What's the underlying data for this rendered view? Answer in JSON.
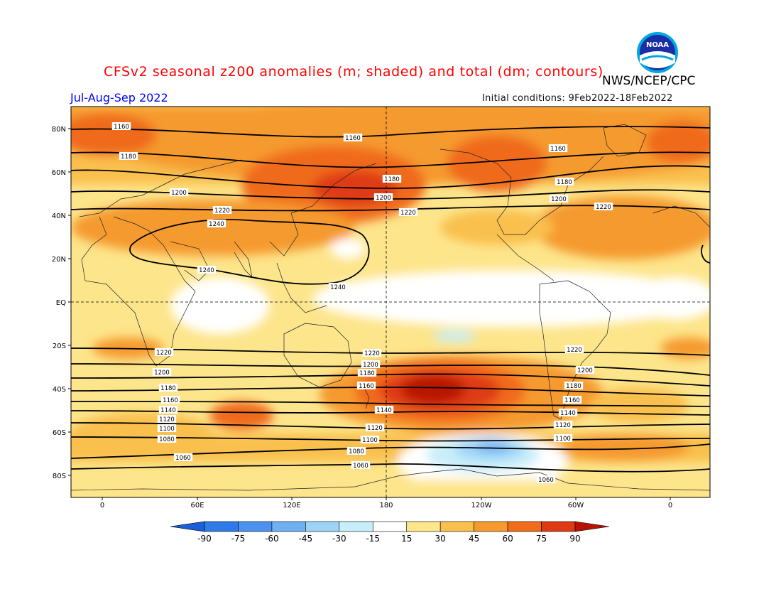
{
  "header": {
    "title": "CFSv2 seasonal z200 anomalies (m; shaded) and total (dm; contours)",
    "title_color": "#ff0000",
    "agency": "NWS/NCEP/CPC",
    "period": "Jul-Aug-Sep 2022",
    "period_color": "#0000ff",
    "initial_conditions": "Initial conditions: 9Feb2022-18Feb2022",
    "logo_text": "NOAA"
  },
  "map": {
    "lat_labels": [
      "80N",
      "60N",
      "40N",
      "20N",
      "EQ",
      "20S",
      "40S",
      "60S",
      "80S"
    ],
    "lon_labels": [
      "0",
      "60E",
      "120E",
      "180",
      "120W",
      "60W",
      "0"
    ],
    "contour_labels": {
      "north": [
        "1160",
        "1160",
        "1160",
        "1180",
        "1180",
        "1180",
        "1200",
        "1200",
        "1200",
        "1220",
        "1220",
        "1220",
        "1240",
        "1240",
        "1240"
      ],
      "south": [
        "1220",
        "1220",
        "1220",
        "1200",
        "1200",
        "1200",
        "1180",
        "1180",
        "1180",
        "1160",
        "1160",
        "1160",
        "1140",
        "1140",
        "1140",
        "1120",
        "1120",
        "1120",
        "1100",
        "1100",
        "1100",
        "1080",
        "1060",
        "1060",
        "1060",
        "1080"
      ]
    }
  },
  "colorbar": {
    "labels": [
      "-90",
      "-75",
      "-60",
      "-45",
      "-30",
      "-15",
      "15",
      "30",
      "45",
      "60",
      "75",
      "90"
    ],
    "colors": [
      "#1a5fd9",
      "#2f7ae8",
      "#4c92ee",
      "#6fb0f3",
      "#9dd3f7",
      "#c8eefa",
      "#ffffff",
      "#fde58b",
      "#f9c04e",
      "#f59a2e",
      "#f06b1a",
      "#de3a12",
      "#b81206"
    ]
  }
}
